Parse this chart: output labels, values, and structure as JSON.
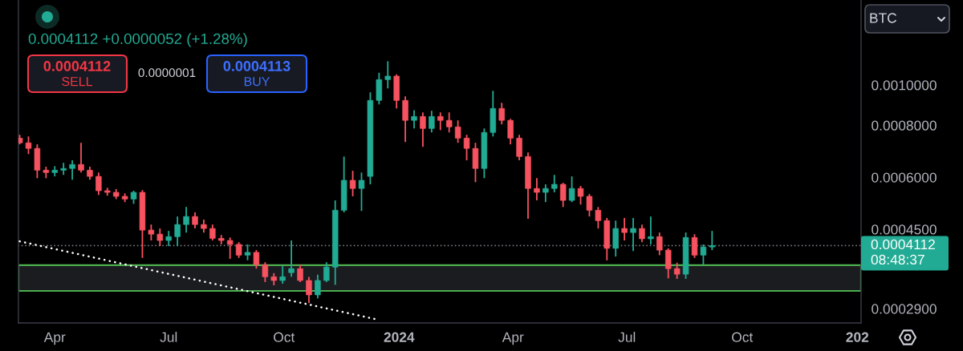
{
  "chart_data": {
    "type": "candlestick",
    "title": "0.0004112 +0.0000052 (+1.28%)",
    "x": [
      "2023-03-04",
      "2023-03-11",
      "2023-03-18",
      "2023-03-25",
      "2023-04-01",
      "2023-04-08",
      "2023-04-15",
      "2023-04-22",
      "2023-04-29",
      "2023-05-06",
      "2023-05-13",
      "2023-05-20",
      "2023-05-27",
      "2023-06-03",
      "2023-06-10",
      "2023-06-17",
      "2023-06-24",
      "2023-07-01",
      "2023-07-08",
      "2023-07-15",
      "2023-07-22",
      "2023-07-29",
      "2023-08-05",
      "2023-08-12",
      "2023-08-19",
      "2023-08-26",
      "2023-09-02",
      "2023-09-09",
      "2023-09-16",
      "2023-09-23",
      "2023-09-30",
      "2023-10-07",
      "2023-10-14",
      "2023-10-21",
      "2023-10-28",
      "2023-11-04",
      "2023-11-11",
      "2023-11-18",
      "2023-11-25",
      "2023-12-02",
      "2023-12-09",
      "2023-12-16",
      "2023-12-23",
      "2023-12-30",
      "2024-01-06",
      "2024-01-13",
      "2024-01-20",
      "2024-01-27",
      "2024-02-03",
      "2024-02-10",
      "2024-02-17",
      "2024-02-24",
      "2024-03-02",
      "2024-03-09",
      "2024-03-16",
      "2024-03-23",
      "2024-03-30",
      "2024-04-06",
      "2024-04-13",
      "2024-04-20",
      "2024-04-27",
      "2024-05-04",
      "2024-05-11",
      "2024-05-18",
      "2024-05-25",
      "2024-06-01",
      "2024-06-08",
      "2024-06-15",
      "2024-06-22",
      "2024-06-29",
      "2024-07-06",
      "2024-07-13",
      "2024-07-20",
      "2024-07-27",
      "2024-08-03",
      "2024-08-10",
      "2024-08-17",
      "2024-08-24",
      "2024-08-31",
      "2024-09-07"
    ],
    "ohlc": [
      [
        0.000745,
        0.000759,
        0.00072,
        0.000726
      ],
      [
        0.000726,
        0.000752,
        0.000682,
        0.000704
      ],
      [
        0.000704,
        0.00072,
        0.000597,
        0.000624
      ],
      [
        0.000624,
        0.000636,
        0.000597,
        0.000616
      ],
      [
        0.000616,
        0.000638,
        0.000603,
        0.000624
      ],
      [
        0.000624,
        0.00065,
        0.000608,
        0.00063
      ],
      [
        0.00063,
        0.000659,
        0.000592,
        0.000644
      ],
      [
        0.000644,
        0.000726,
        0.000616,
        0.000624
      ],
      [
        0.000624,
        0.000636,
        0.000592,
        0.000603
      ],
      [
        0.000603,
        0.000616,
        0.000544,
        0.000557
      ],
      [
        0.000557,
        0.000566,
        0.000542,
        0.000552
      ],
      [
        0.000552,
        0.000562,
        0.000532,
        0.00054
      ],
      [
        0.00054,
        0.000549,
        0.000523,
        0.000532
      ],
      [
        0.000532,
        0.000557,
        0.000518,
        0.000552
      ],
      [
        0.000552,
        0.000559,
        0.000384,
        0.000448
      ],
      [
        0.000448,
        0.000462,
        0.000423,
        0.000438
      ],
      [
        0.000438,
        0.000452,
        0.00041,
        0.000423
      ],
      [
        0.000423,
        0.000446,
        0.00041,
        0.000432
      ],
      [
        0.000432,
        0.000483,
        0.00041,
        0.000462
      ],
      [
        0.000462,
        0.000509,
        0.000442,
        0.000483
      ],
      [
        0.000483,
        0.000494,
        0.000452,
        0.000462
      ],
      [
        0.000462,
        0.000475,
        0.000442,
        0.000452
      ],
      [
        0.000452,
        0.000462,
        0.000423,
        0.000428
      ],
      [
        0.000428,
        0.000436,
        0.000414,
        0.000423
      ],
      [
        0.000423,
        0.00043,
        0.000382,
        0.000414
      ],
      [
        0.000414,
        0.000419,
        0.000384,
        0.00039
      ],
      [
        0.00039,
        0.000414,
        0.000379,
        0.000396
      ],
      [
        0.000396,
        0.000401,
        0.000362,
        0.00037
      ],
      [
        0.00037,
        0.000375,
        0.000336,
        0.000346
      ],
      [
        0.000346,
        0.000353,
        0.00033,
        0.000339
      ],
      [
        0.000339,
        0.000367,
        0.000333,
        0.000346
      ],
      [
        0.000354,
        0.000423,
        0.000346,
        0.000362
      ],
      [
        0.000362,
        0.00037,
        0.000336,
        0.000339
      ],
      [
        0.000339,
        0.000346,
        0.000299,
        0.000313
      ],
      [
        0.000313,
        0.00035,
        0.000307,
        0.000339
      ],
      [
        0.000339,
        0.000375,
        0.000336,
        0.000365
      ],
      [
        0.000365,
        0.000528,
        0.000331,
        0.0005
      ],
      [
        0.0005,
        0.000673,
        0.000494,
        0.00059
      ],
      [
        0.00059,
        0.000622,
        0.00054,
        0.000564
      ],
      [
        0.000564,
        0.000616,
        0.000498,
        0.00059
      ],
      [
        0.000603,
        0.00096,
        0.000577,
        0.000918
      ],
      [
        0.000918,
        0.00107,
        0.000898,
        0.00103
      ],
      [
        0.00103,
        0.00114,
        0.000981,
        0.00105
      ],
      [
        0.00105,
        0.00106,
        0.000878,
        0.000918
      ],
      [
        0.000918,
        0.000939,
        0.000729,
        0.000822
      ],
      [
        0.000822,
        0.00087,
        0.000786,
        0.00084
      ],
      [
        0.00084,
        0.000859,
        0.00071,
        0.000786
      ],
      [
        0.000786,
        0.000867,
        0.000769,
        0.00084
      ],
      [
        0.00084,
        0.000859,
        0.000779,
        0.000822
      ],
      [
        0.000822,
        0.000859,
        0.000769,
        0.000793
      ],
      [
        0.000793,
        0.000822,
        0.000726,
        0.000745
      ],
      [
        0.000745,
        0.000759,
        0.000659,
        0.000704
      ],
      [
        0.000704,
        0.000726,
        0.000584,
        0.00063
      ],
      [
        0.00063,
        0.000786,
        0.000597,
        0.000769
      ],
      [
        0.000769,
        0.000968,
        0.000752,
        0.000878
      ],
      [
        0.000878,
        0.000906,
        0.000804,
        0.000822
      ],
      [
        0.000822,
        0.000829,
        0.00072,
        0.000745
      ],
      [
        0.000745,
        0.000759,
        0.000659,
        0.000673
      ],
      [
        0.000673,
        0.000688,
        0.000477,
        0.000564
      ],
      [
        0.000564,
        0.000597,
        0.000528,
        0.000552
      ],
      [
        0.000552,
        0.000577,
        0.000523,
        0.000564
      ],
      [
        0.000564,
        0.000608,
        0.000552,
        0.000577
      ],
      [
        0.000577,
        0.000582,
        0.000509,
        0.000528
      ],
      [
        0.000528,
        0.000603,
        0.000523,
        0.000564
      ],
      [
        0.000564,
        0.000572,
        0.000516,
        0.00054
      ],
      [
        0.00054,
        0.000547,
        0.000483,
        0.0005
      ],
      [
        0.0005,
        0.000509,
        0.000452,
        0.000472
      ],
      [
        0.000472,
        0.000479,
        0.000379,
        0.000405
      ],
      [
        0.000405,
        0.000472,
        0.000387,
        0.000452
      ],
      [
        0.000452,
        0.000479,
        0.000423,
        0.000442
      ],
      [
        0.000442,
        0.000479,
        0.000399,
        0.000452
      ],
      [
        0.000452,
        0.000462,
        0.000419,
        0.000427
      ],
      [
        0.000427,
        0.000483,
        0.000414,
        0.000432
      ],
      [
        0.000432,
        0.000442,
        0.00039,
        0.000401
      ],
      [
        0.000401,
        0.000405,
        0.000343,
        0.000362
      ],
      [
        0.000362,
        0.000374,
        0.000342,
        0.000351
      ],
      [
        0.000351,
        0.000442,
        0.000342,
        0.00043
      ],
      [
        0.00043,
        0.000438,
        0.000384,
        0.00039
      ],
      [
        0.00039,
        0.000414,
        0.00037,
        0.000408
      ],
      [
        0.000408,
        0.000446,
        0.000401,
        0.0004112
      ]
    ],
    "colors": [
      "#f7525f",
      "#f7525f",
      "#f7525f",
      "#f7525f",
      "#22ab94",
      "#22ab94",
      "#22ab94",
      "#f7525f",
      "#f7525f",
      "#f7525f",
      "#f7525f",
      "#f7525f",
      "#f7525f",
      "#22ab94",
      "#f7525f",
      "#f7525f",
      "#f7525f",
      "#22ab94",
      "#22ab94",
      "#22ab94",
      "#f7525f",
      "#f7525f",
      "#f7525f",
      "#f7525f",
      "#f7525f",
      "#f7525f",
      "#22ab94",
      "#f7525f",
      "#f7525f",
      "#f7525f",
      "#22ab94",
      "#22ab94",
      "#f7525f",
      "#f7525f",
      "#22ab94",
      "#22ab94",
      "#22ab94",
      "#22ab94",
      "#f7525f",
      "#22ab94",
      "#22ab94",
      "#22ab94",
      "#22ab94",
      "#f7525f",
      "#f7525f",
      "#22ab94",
      "#f7525f",
      "#22ab94",
      "#f7525f",
      "#f7525f",
      "#f7525f",
      "#f7525f",
      "#f7525f",
      "#22ab94",
      "#22ab94",
      "#f7525f",
      "#f7525f",
      "#f7525f",
      "#f7525f",
      "#f7525f",
      "#22ab94",
      "#22ab94",
      "#f7525f",
      "#22ab94",
      "#f7525f",
      "#f7525f",
      "#f7525f",
      "#f7525f",
      "#22ab94",
      "#f7525f",
      "#22ab94",
      "#f7525f",
      "#22ab94",
      "#f7525f",
      "#f7525f",
      "#f7525f",
      "#22ab94",
      "#f7525f",
      "#22ab94",
      "#22ab94"
    ],
    "series": [
      {
        "type": "line",
        "x": [
          "2023-03-04",
          "2023-12-15"
        ],
        "values": [
          0.000421,
          0.000273
        ],
        "color": "#ffffff",
        "line_style": "dotted"
      }
    ],
    "log": true,
    "xlim": [
      "2023-03-03",
      "2025-01-04"
    ],
    "xticks": [
      {
        "value": "2023-04-01",
        "label": "Apr"
      },
      {
        "value": "2023-07-01",
        "label": "Jul"
      },
      {
        "value": "2023-10-01",
        "label": "Oct"
      },
      {
        "value": "2024-01-01",
        "label": "2024"
      },
      {
        "value": "2024-04-01",
        "label": "Apr"
      },
      {
        "value": "2024-07-01",
        "label": "Jul"
      },
      {
        "value": "2024-10-01",
        "label": "Oct"
      },
      {
        "value": "2025-01-01",
        "label": "202"
      }
    ],
    "ylim": [
      0.000268,
      0.0016
    ],
    "yticks": [
      {
        "value": 0.00029,
        "label": "0.0002900"
      },
      {
        "value": 0.00045,
        "label": "0.0004500"
      },
      {
        "value": 0.0006,
        "label": "0.0006000"
      },
      {
        "value": 0.0008,
        "label": "0.0008000"
      },
      {
        "value": 0.001,
        "label": "0.0010000"
      }
    ],
    "ref_lines": [
      {
        "axis": "y",
        "value": 0.0004112,
        "label": "0.0004112",
        "color": "#787b86",
        "line_style": "dotted"
      }
    ],
    "bands": [
      {
        "axis": "y",
        "from": 0.00032,
        "to": 0.000369,
        "color": "#4caf50"
      }
    ],
    "annotations": [
      "0.0004112",
      "SELL",
      "0.0000001",
      "0.0004113",
      "BUY",
      "BTC",
      "08:48:37"
    ]
  }
}
